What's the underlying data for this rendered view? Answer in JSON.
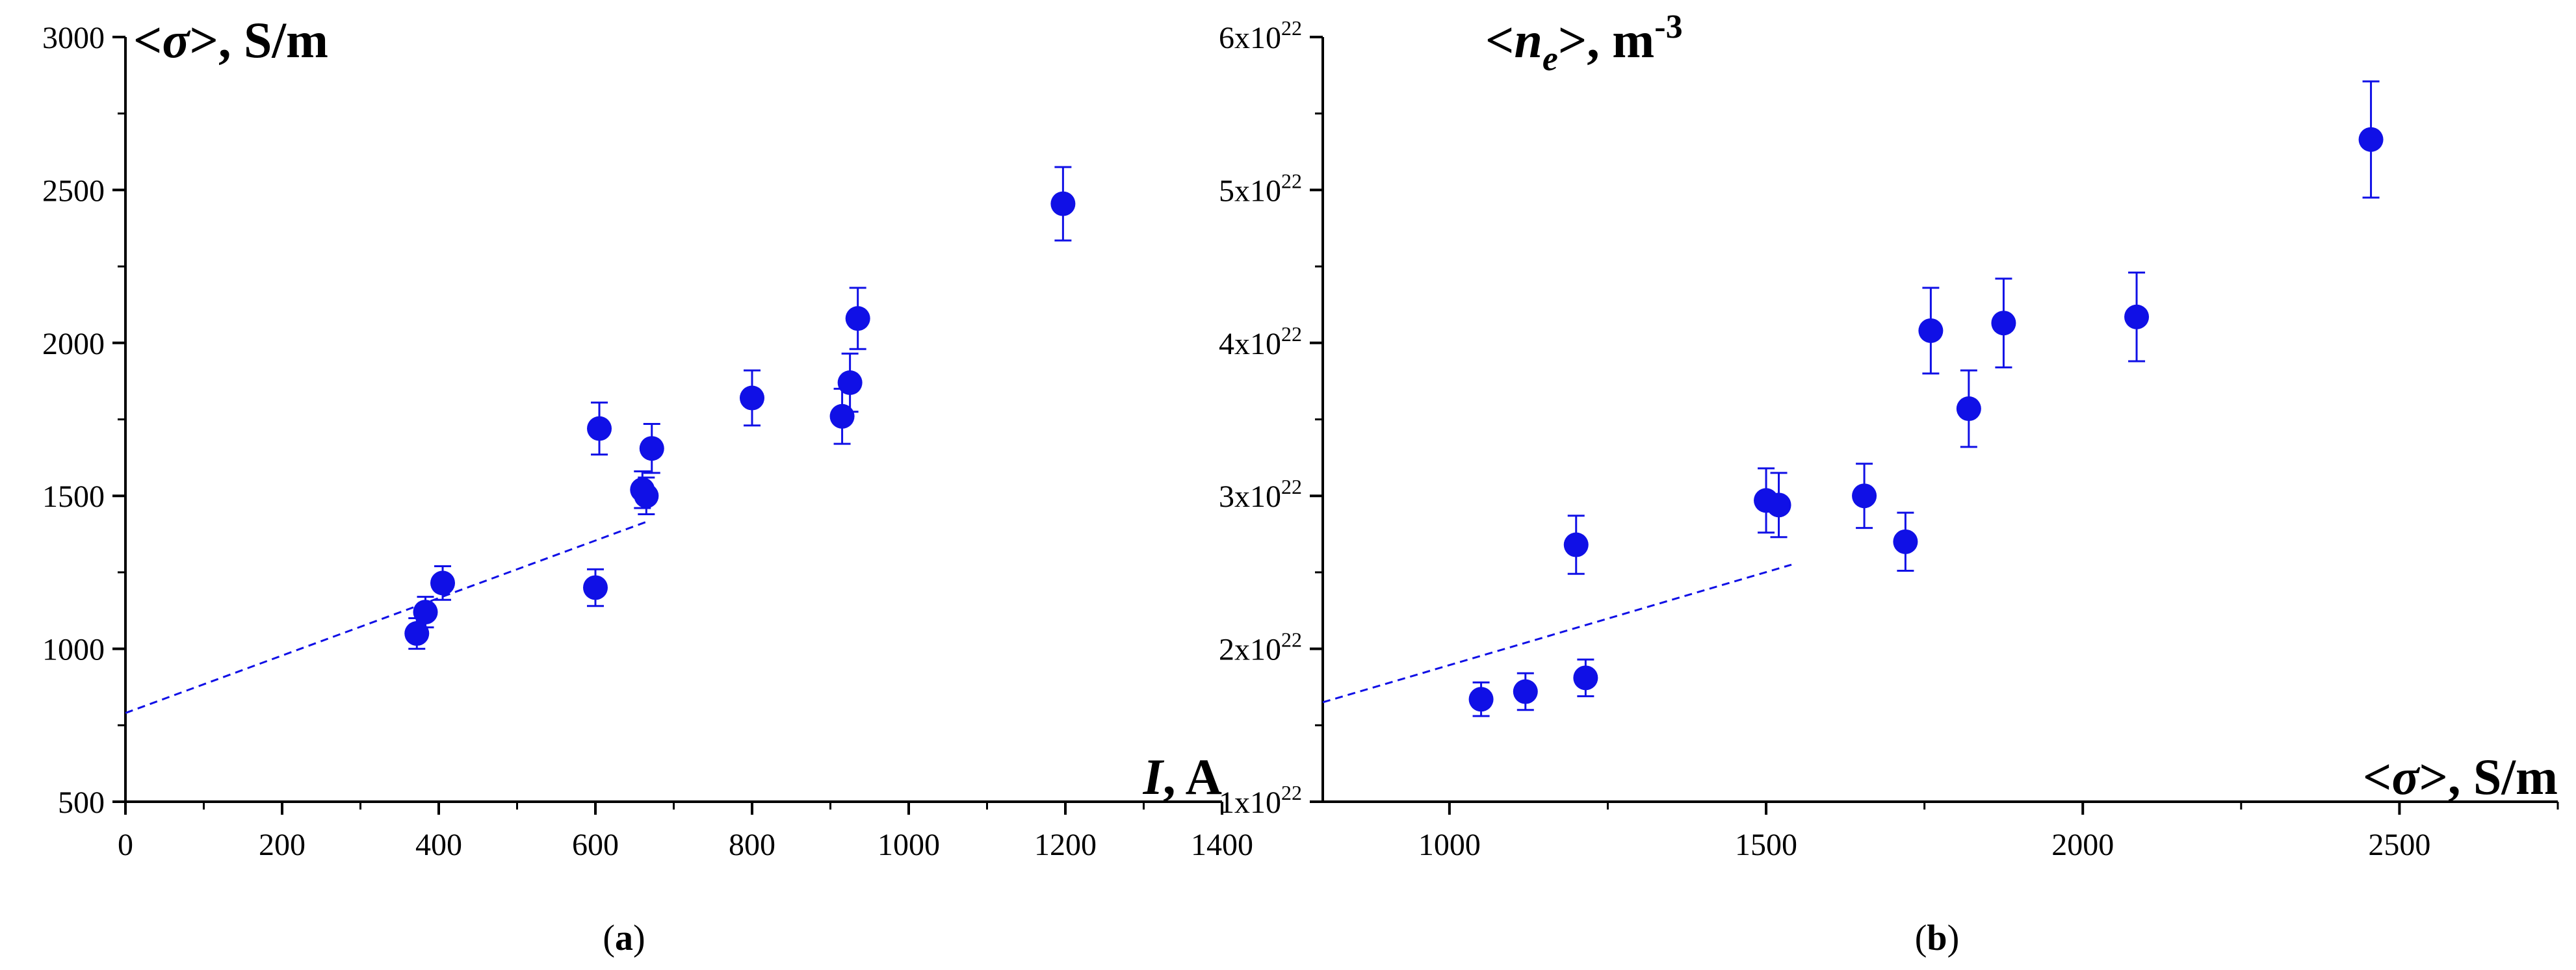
{
  "colors": {
    "marker": "#1010e6",
    "axis": "#000000"
  },
  "chart_data": [
    {
      "type": "scatter",
      "panel_label": {
        "open": "(",
        "letter": "a",
        "close": ")"
      },
      "ylabel": {
        "lt": "<",
        "symbol": "σ",
        "gt": ">",
        "unit": ", S/m"
      },
      "xlabel": {
        "symbol": "I",
        "unit": ", A"
      },
      "xlim": [
        0,
        1400
      ],
      "ylim": [
        500,
        3000
      ],
      "xticks": [
        0,
        200,
        400,
        600,
        800,
        1000,
        1200,
        1400
      ],
      "yticks": [
        500,
        1000,
        1500,
        2000,
        2500,
        3000
      ],
      "xtick_labels": [
        "0",
        "200",
        "400",
        "600",
        "800",
        "1000",
        "1200",
        "1400"
      ],
      "ytick_labels": [
        "500",
        "1000",
        "1500",
        "2000",
        "2500",
        "3000"
      ],
      "grid": false,
      "points": [
        {
          "x": 372,
          "y": 1050,
          "err": 50
        },
        {
          "x": 383,
          "y": 1120,
          "err": 50
        },
        {
          "x": 405,
          "y": 1215,
          "err": 55
        },
        {
          "x": 600,
          "y": 1200,
          "err": 60
        },
        {
          "x": 605,
          "y": 1720,
          "err": 85
        },
        {
          "x": 660,
          "y": 1520,
          "err": 60
        },
        {
          "x": 665,
          "y": 1500,
          "err": 60
        },
        {
          "x": 672,
          "y": 1655,
          "err": 80
        },
        {
          "x": 800,
          "y": 1820,
          "err": 90
        },
        {
          "x": 915,
          "y": 1760,
          "err": 90
        },
        {
          "x": 925,
          "y": 1870,
          "err": 95
        },
        {
          "x": 935,
          "y": 2080,
          "err": 100
        },
        {
          "x": 1197,
          "y": 2455,
          "err": 120
        }
      ],
      "fit_line": {
        "x": [
          0,
          665
        ],
        "y": [
          790,
          1415
        ],
        "style": "dashed"
      }
    },
    {
      "type": "scatter",
      "panel_label": {
        "open": "(",
        "letter": "b",
        "close": ")"
      },
      "ylabel": {
        "lt": "<",
        "symbol": "n",
        "subscript": "e",
        "gt": ">",
        "unit": ", m",
        "superscript": "-3"
      },
      "xlabel": {
        "lt": "<",
        "symbol": "σ",
        "gt": ">",
        "unit": ", S/m"
      },
      "xlim": [
        800,
        2750
      ],
      "ylim": [
        1e+22,
        6e+22
      ],
      "xticks": [
        1000,
        1500,
        2000,
        2500
      ],
      "xtick_labels": [
        "1000",
        "1500",
        "2000",
        "2500"
      ],
      "yticks": [
        1e+22,
        2e+22,
        3e+22,
        4e+22,
        5e+22,
        6e+22
      ],
      "ytick_labels": [
        {
          "mantissa": "1x10",
          "exponent": "22"
        },
        {
          "mantissa": "2x10",
          "exponent": "22"
        },
        {
          "mantissa": "3x10",
          "exponent": "22"
        },
        {
          "mantissa": "4x10",
          "exponent": "22"
        },
        {
          "mantissa": "5x10",
          "exponent": "22"
        },
        {
          "mantissa": "6x10",
          "exponent": "22"
        }
      ],
      "grid": false,
      "points": [
        {
          "x": 1050,
          "y": 1.67e+22,
          "err": 1.1e+21
        },
        {
          "x": 1120,
          "y": 1.72e+22,
          "err": 1.2e+21
        },
        {
          "x": 1200,
          "y": 2.68e+22,
          "err": 1.9e+21
        },
        {
          "x": 1215,
          "y": 1.81e+22,
          "err": 1.2e+21
        },
        {
          "x": 1500,
          "y": 2.97e+22,
          "err": 2.1e+21
        },
        {
          "x": 1520,
          "y": 2.94e+22,
          "err": 2.1e+21
        },
        {
          "x": 1655,
          "y": 3e+22,
          "err": 2.1e+21
        },
        {
          "x": 1720,
          "y": 2.7e+22,
          "err": 1.9e+21
        },
        {
          "x": 1760,
          "y": 4.08e+22,
          "err": 2.8e+21
        },
        {
          "x": 1820,
          "y": 3.57e+22,
          "err": 2.5e+21
        },
        {
          "x": 1875,
          "y": 4.13e+22,
          "err": 2.9e+21
        },
        {
          "x": 2085,
          "y": 4.17e+22,
          "err": 2.9e+21
        },
        {
          "x": 2455,
          "y": 5.33e+22,
          "err": 3.8e+21
        }
      ],
      "fit_line": {
        "x": [
          800,
          1540
        ],
        "y": [
          1.65e+22,
          2.55e+22
        ],
        "style": "dashed"
      }
    }
  ]
}
